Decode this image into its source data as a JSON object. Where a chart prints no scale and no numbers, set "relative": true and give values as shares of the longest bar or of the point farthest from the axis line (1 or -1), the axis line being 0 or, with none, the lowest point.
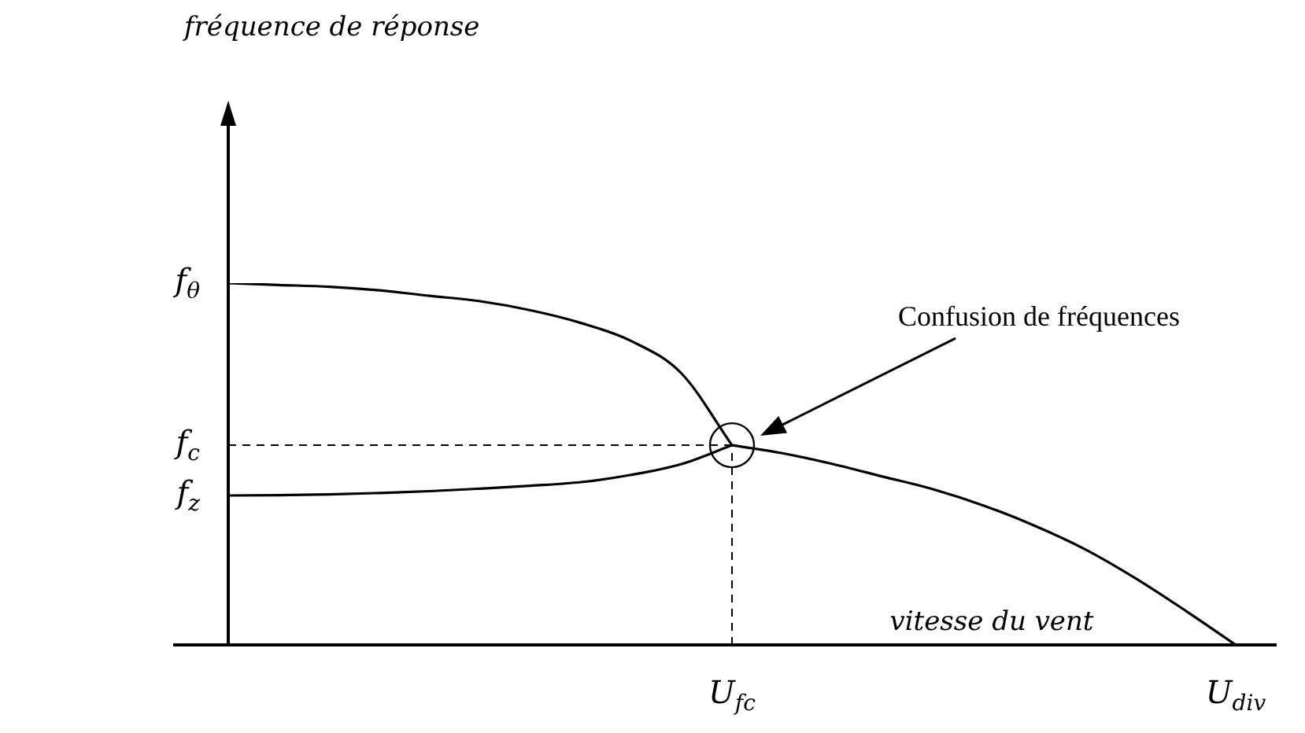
{
  "chart_data": {
    "type": "line",
    "relative": true,
    "xlabel": "vitesse du vent",
    "categories": [
      null,
      null,
      null,
      null,
      null,
      null,
      null,
      null,
      null,
      null,
      "U$_{fc}$",
      null,
      null,
      null,
      null,
      null,
      null,
      null,
      null,
      null,
      "U$_{div}$"
    ],
    "series": [
      {
        "name": "f$_{θ}$",
        "color": "#000000",
        "values": [
          1,
          0.995,
          0.99,
          0.98,
          0.965,
          0.95,
          0.925,
          0.89,
          0.84,
          0.75,
          0.552,
          null,
          null,
          null,
          null,
          null,
          null,
          null,
          null,
          null,
          null
        ]
      },
      {
        "name": "f$_{z}$",
        "color": "#000000",
        "values": [
          0.413,
          0.414,
          0.416,
          0.42,
          0.425,
          0.432,
          0.44,
          0.45,
          0.47,
          0.5,
          0.552,
          null,
          null,
          null,
          null,
          null,
          null,
          null,
          null,
          null,
          null
        ]
      },
      {
        "color": "#000000",
        "values": [
          null,
          null,
          null,
          null,
          null,
          null,
          null,
          null,
          null,
          null,
          0.552,
          0.53,
          0.5,
          0.465,
          0.43,
          0.385,
          0.33,
          0.265,
          0.185,
          0.095,
          0
        ]
      }
    ],
    "ref_lines": [
      {
        "axis": "y",
        "value": 0.552,
        "label": "f$_{c}$",
        "line_style": "dashed"
      },
      {
        "axis": "x",
        "value": "U$_{fc}$",
        "line_style": "dashed"
      }
    ],
    "annotations": [
      "fréquence de réponse",
      "Confusion de fréquences"
    ]
  }
}
